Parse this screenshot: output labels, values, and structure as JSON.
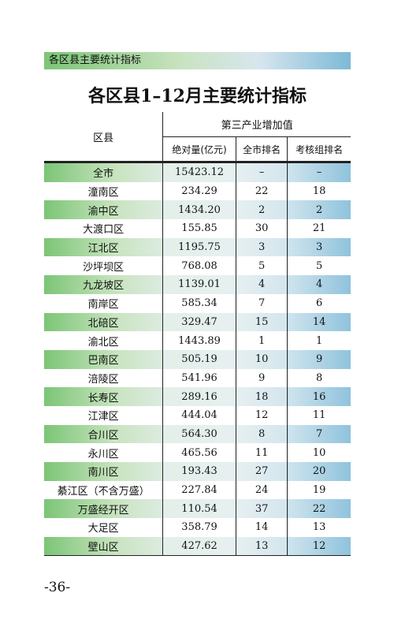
{
  "header": {
    "title": "各区县主要统计指标"
  },
  "table": {
    "title": "各区县1–12月主要统计指标",
    "region_header": "区县",
    "group_header": "第三产业增加值",
    "columns": [
      "绝对量(亿元)",
      "全市排名",
      "考核组排名"
    ],
    "rows": [
      [
        "全市",
        "15423.12",
        "–",
        "–"
      ],
      [
        "潼南区",
        "234.29",
        "22",
        "18"
      ],
      [
        "渝中区",
        "1434.20",
        "2",
        "2"
      ],
      [
        "大渡口区",
        "155.85",
        "30",
        "21"
      ],
      [
        "江北区",
        "1195.75",
        "3",
        "3"
      ],
      [
        "沙坪坝区",
        "768.08",
        "5",
        "5"
      ],
      [
        "九龙坡区",
        "1139.01",
        "4",
        "4"
      ],
      [
        "南岸区",
        "585.34",
        "7",
        "6"
      ],
      [
        "北碚区",
        "329.47",
        "15",
        "14"
      ],
      [
        "渝北区",
        "1443.89",
        "1",
        "1"
      ],
      [
        "巴南区",
        "505.19",
        "10",
        "9"
      ],
      [
        "涪陵区",
        "541.96",
        "9",
        "8"
      ],
      [
        "长寿区",
        "289.16",
        "18",
        "16"
      ],
      [
        "江津区",
        "444.04",
        "12",
        "11"
      ],
      [
        "合川区",
        "564.30",
        "8",
        "7"
      ],
      [
        "永川区",
        "465.56",
        "11",
        "10"
      ],
      [
        "南川区",
        "193.43",
        "27",
        "20"
      ],
      [
        "綦江区（不含万盛）",
        "227.84",
        "24",
        "19"
      ],
      [
        "万盛经开区",
        "110.54",
        "37",
        "22"
      ],
      [
        "大足区",
        "358.79",
        "14",
        "13"
      ],
      [
        "壁山区",
        "427.62",
        "13",
        "12"
      ]
    ]
  },
  "footer": {
    "page_number": "-36-"
  }
}
